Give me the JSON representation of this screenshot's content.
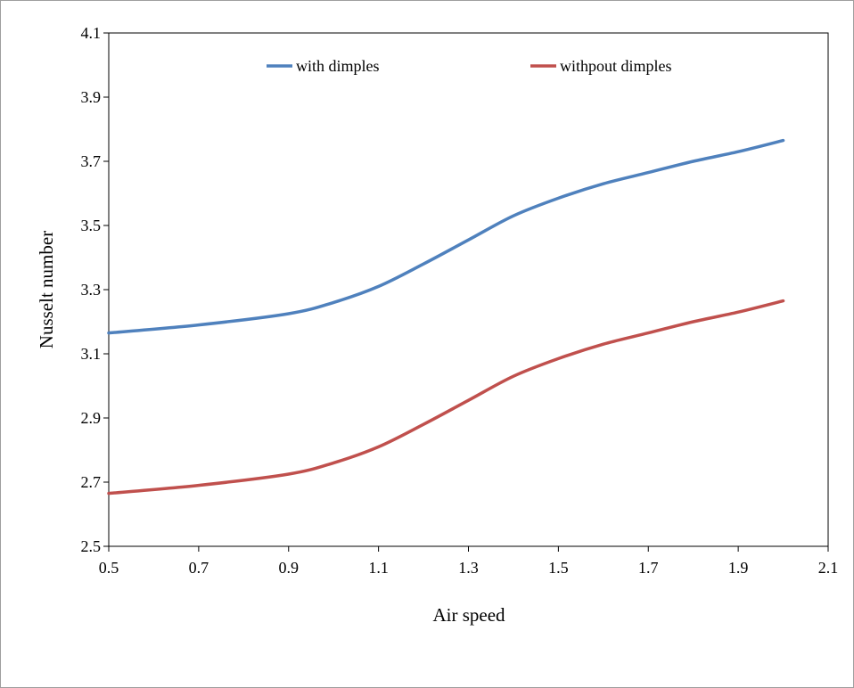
{
  "chart_data": {
    "type": "line",
    "title": "",
    "xlabel": "Air speed",
    "ylabel": "Nusselt number",
    "xlim": [
      0.5,
      2.1
    ],
    "ylim": [
      2.5,
      4.1
    ],
    "x_ticks": [
      "0.5",
      "0.7",
      "0.9",
      "1.1",
      "1.3",
      "1.5",
      "1.7",
      "1.9",
      "2.1"
    ],
    "y_ticks": [
      "2.5",
      "2.7",
      "2.9",
      "3.1",
      "3.3",
      "3.5",
      "3.7",
      "3.9",
      "4.1"
    ],
    "grid": false,
    "legend_position": "top",
    "series": [
      {
        "name": "with dimples",
        "color": "#4f81bd",
        "x": [
          0.5,
          0.7,
          0.9,
          1.0,
          1.1,
          1.2,
          1.3,
          1.4,
          1.5,
          1.6,
          1.7,
          1.8,
          1.9,
          2.0
        ],
        "y": [
          3.165,
          3.19,
          3.225,
          3.26,
          3.31,
          3.38,
          3.455,
          3.53,
          3.585,
          3.63,
          3.665,
          3.7,
          3.73,
          3.765
        ]
      },
      {
        "name": "withpout dimples",
        "color": "#c0504d",
        "x": [
          0.5,
          0.7,
          0.9,
          1.0,
          1.1,
          1.2,
          1.3,
          1.4,
          1.5,
          1.6,
          1.7,
          1.8,
          1.9,
          2.0
        ],
        "y": [
          2.665,
          2.69,
          2.725,
          2.76,
          2.81,
          2.88,
          2.955,
          3.03,
          3.085,
          3.13,
          3.165,
          3.2,
          3.23,
          3.265
        ]
      }
    ]
  }
}
